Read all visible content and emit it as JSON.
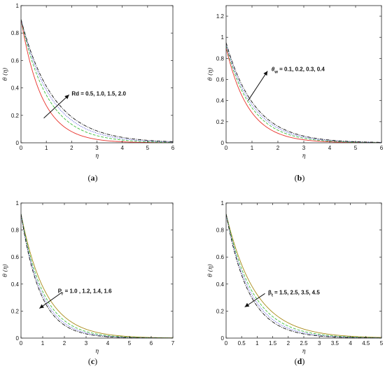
{
  "colors": {
    "red": "#e8312a",
    "green": "#3fbf3f",
    "blue": "#3a3ad8",
    "black": "#111111",
    "olive": "#a88a18",
    "axis": "#222222"
  },
  "chart_data": [
    {
      "type": "line",
      "panel": "(a)",
      "panel_letter": "a",
      "xlabel": "η",
      "ylabel": "θ (η)",
      "xlim": [
        0,
        6
      ],
      "ylim": [
        0,
        1
      ],
      "xticks": [
        0,
        1,
        2,
        3,
        4,
        5,
        6
      ],
      "yticks": [
        0,
        0.2,
        0.4,
        0.6,
        0.8,
        1
      ],
      "ytick_labels": [
        "0",
        "0.2",
        "0.4",
        "0.6",
        "0.8",
        "1"
      ],
      "annotation": {
        "text": "Rd = 0.5, 1.0, 1.5, 2.0",
        "arrow_from": [
          0.9,
          0.18
        ],
        "arrow_to": [
          1.9,
          0.35
        ],
        "text_at": [
          2.0,
          0.36
        ]
      },
      "series": [
        {
          "color": "#e8312a",
          "dash": "",
          "y0": 0.9,
          "k": 1.2
        },
        {
          "color": "#3fbf3f",
          "dash": "4,2",
          "y0": 0.9,
          "k": 0.95
        },
        {
          "color": "#3a3ad8",
          "dash": "1,1.5",
          "y0": 0.9,
          "k": 0.85
        },
        {
          "color": "#111111",
          "dash": "5,1.5,1,1.5",
          "y0": 0.9,
          "k": 0.78
        }
      ]
    },
    {
      "type": "line",
      "panel": "(b)",
      "panel_letter": "b",
      "xlabel": "η",
      "ylabel": "θ (η)",
      "xlim": [
        0,
        6
      ],
      "ylim": [
        0,
        1.3
      ],
      "xticks": [
        0,
        1,
        2,
        3,
        4,
        5,
        6
      ],
      "yticks": [
        0,
        0.2,
        0.4,
        0.6,
        0.8,
        1,
        1.2
      ],
      "ytick_labels": [
        "0",
        "0.2",
        "0.4",
        "0.6",
        "0.8",
        "1",
        "1.2"
      ],
      "annotation": {
        "text": "θw = 0.1, 0.2, 0.3, 0.4",
        "arrow_from": [
          0.85,
          0.4
        ],
        "arrow_to": [
          1.6,
          0.68
        ],
        "text_at": [
          1.75,
          0.7
        ]
      },
      "series": [
        {
          "color": "#e8312a",
          "dash": "",
          "y0": 0.9,
          "k": 1.15
        },
        {
          "color": "#3fbf3f",
          "dash": "4,2",
          "y0": 0.92,
          "k": 1.02
        },
        {
          "color": "#3a3ad8",
          "dash": "1,1.5",
          "y0": 0.93,
          "k": 0.95
        },
        {
          "color": "#111111",
          "dash": "5,1.5,1,1.5",
          "y0": 0.95,
          "k": 0.9
        }
      ]
    },
    {
      "type": "line",
      "panel": "(c)",
      "panel_letter": "c",
      "xlabel": "η",
      "ylabel": "θ (η)",
      "xlim": [
        0,
        7
      ],
      "ylim": [
        0,
        1
      ],
      "xticks": [
        0,
        1,
        2,
        3,
        4,
        5,
        6,
        7
      ],
      "yticks": [
        0,
        0.2,
        0.4,
        0.6,
        0.8,
        1
      ],
      "ytick_labels": [
        "0",
        "0.2",
        "0.4",
        "0.6",
        "0.8",
        "1"
      ],
      "annotation": {
        "text": "Pr = 1.0 , 1.2, 1.4, 1.6",
        "arrow_from": [
          1.9,
          0.34
        ],
        "arrow_to": [
          0.85,
          0.22
        ],
        "text_at": [
          1.7,
          0.35
        ]
      },
      "series": [
        {
          "color": "#a88a18",
          "dash": "",
          "y0": 0.92,
          "k": 0.88
        },
        {
          "color": "#3fbf3f",
          "dash": "4,2",
          "y0": 0.92,
          "k": 0.98
        },
        {
          "color": "#3a3ad8",
          "dash": "1,1.5",
          "y0": 0.92,
          "k": 1.06
        },
        {
          "color": "#111111",
          "dash": "5,1.5,1,1.5",
          "y0": 0.92,
          "k": 1.13
        }
      ]
    },
    {
      "type": "line",
      "panel": "(d)",
      "panel_letter": "d",
      "xlabel": "η",
      "ylabel": "θ (η)",
      "xlim": [
        0,
        5
      ],
      "ylim": [
        0,
        1
      ],
      "xticks": [
        0,
        0.5,
        1,
        1.5,
        2,
        2.5,
        3,
        3.5,
        4,
        4.5,
        5
      ],
      "yticks": [
        0,
        0.2,
        0.4,
        0.6,
        0.8,
        1
      ],
      "ytick_labels": [
        "0",
        "0.2",
        "0.4",
        "0.6",
        "0.8",
        "1"
      ],
      "annotation": {
        "text": "βt = 1.5, 2.5, 3.5, 4.5",
        "arrow_from": [
          1.25,
          0.33
        ],
        "arrow_to": [
          0.6,
          0.23
        ],
        "text_at": [
          1.35,
          0.34
        ]
      },
      "series": [
        {
          "color": "#a88a18",
          "dash": "",
          "y0": 0.92,
          "k": 1.05
        },
        {
          "color": "#3fbf3f",
          "dash": "4,2",
          "y0": 0.92,
          "k": 1.17
        },
        {
          "color": "#3a3ad8",
          "dash": "1,1.5",
          "y0": 0.92,
          "k": 1.27
        },
        {
          "color": "#111111",
          "dash": "5,1.5,1,1.5",
          "y0": 0.92,
          "k": 1.36
        }
      ]
    }
  ]
}
